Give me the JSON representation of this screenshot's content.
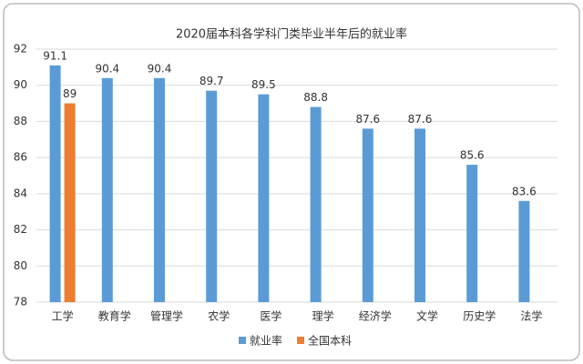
{
  "chart_data": {
    "type": "bar",
    "title": "2020届本科各学科门类毕业半年后的就业率",
    "categories": [
      "工学",
      "教育学",
      "管理学",
      "农学",
      "医学",
      "理学",
      "经济学",
      "文学",
      "历史学",
      "法学"
    ],
    "series": [
      {
        "name": "就业率",
        "color": "#5b9bd5",
        "values": [
          91.1,
          90.4,
          90.4,
          89.7,
          89.5,
          88.8,
          87.6,
          87.6,
          85.6,
          83.6
        ]
      },
      {
        "name": "全国本科",
        "color": "#ed7d31",
        "values": [
          89,
          null,
          null,
          null,
          null,
          null,
          null,
          null,
          null,
          null
        ]
      }
    ],
    "ylim": [
      78,
      92
    ],
    "yticks": [
      78,
      80,
      82,
      84,
      86,
      88,
      90,
      92
    ],
    "grid": true,
    "legend": "bottom"
  }
}
